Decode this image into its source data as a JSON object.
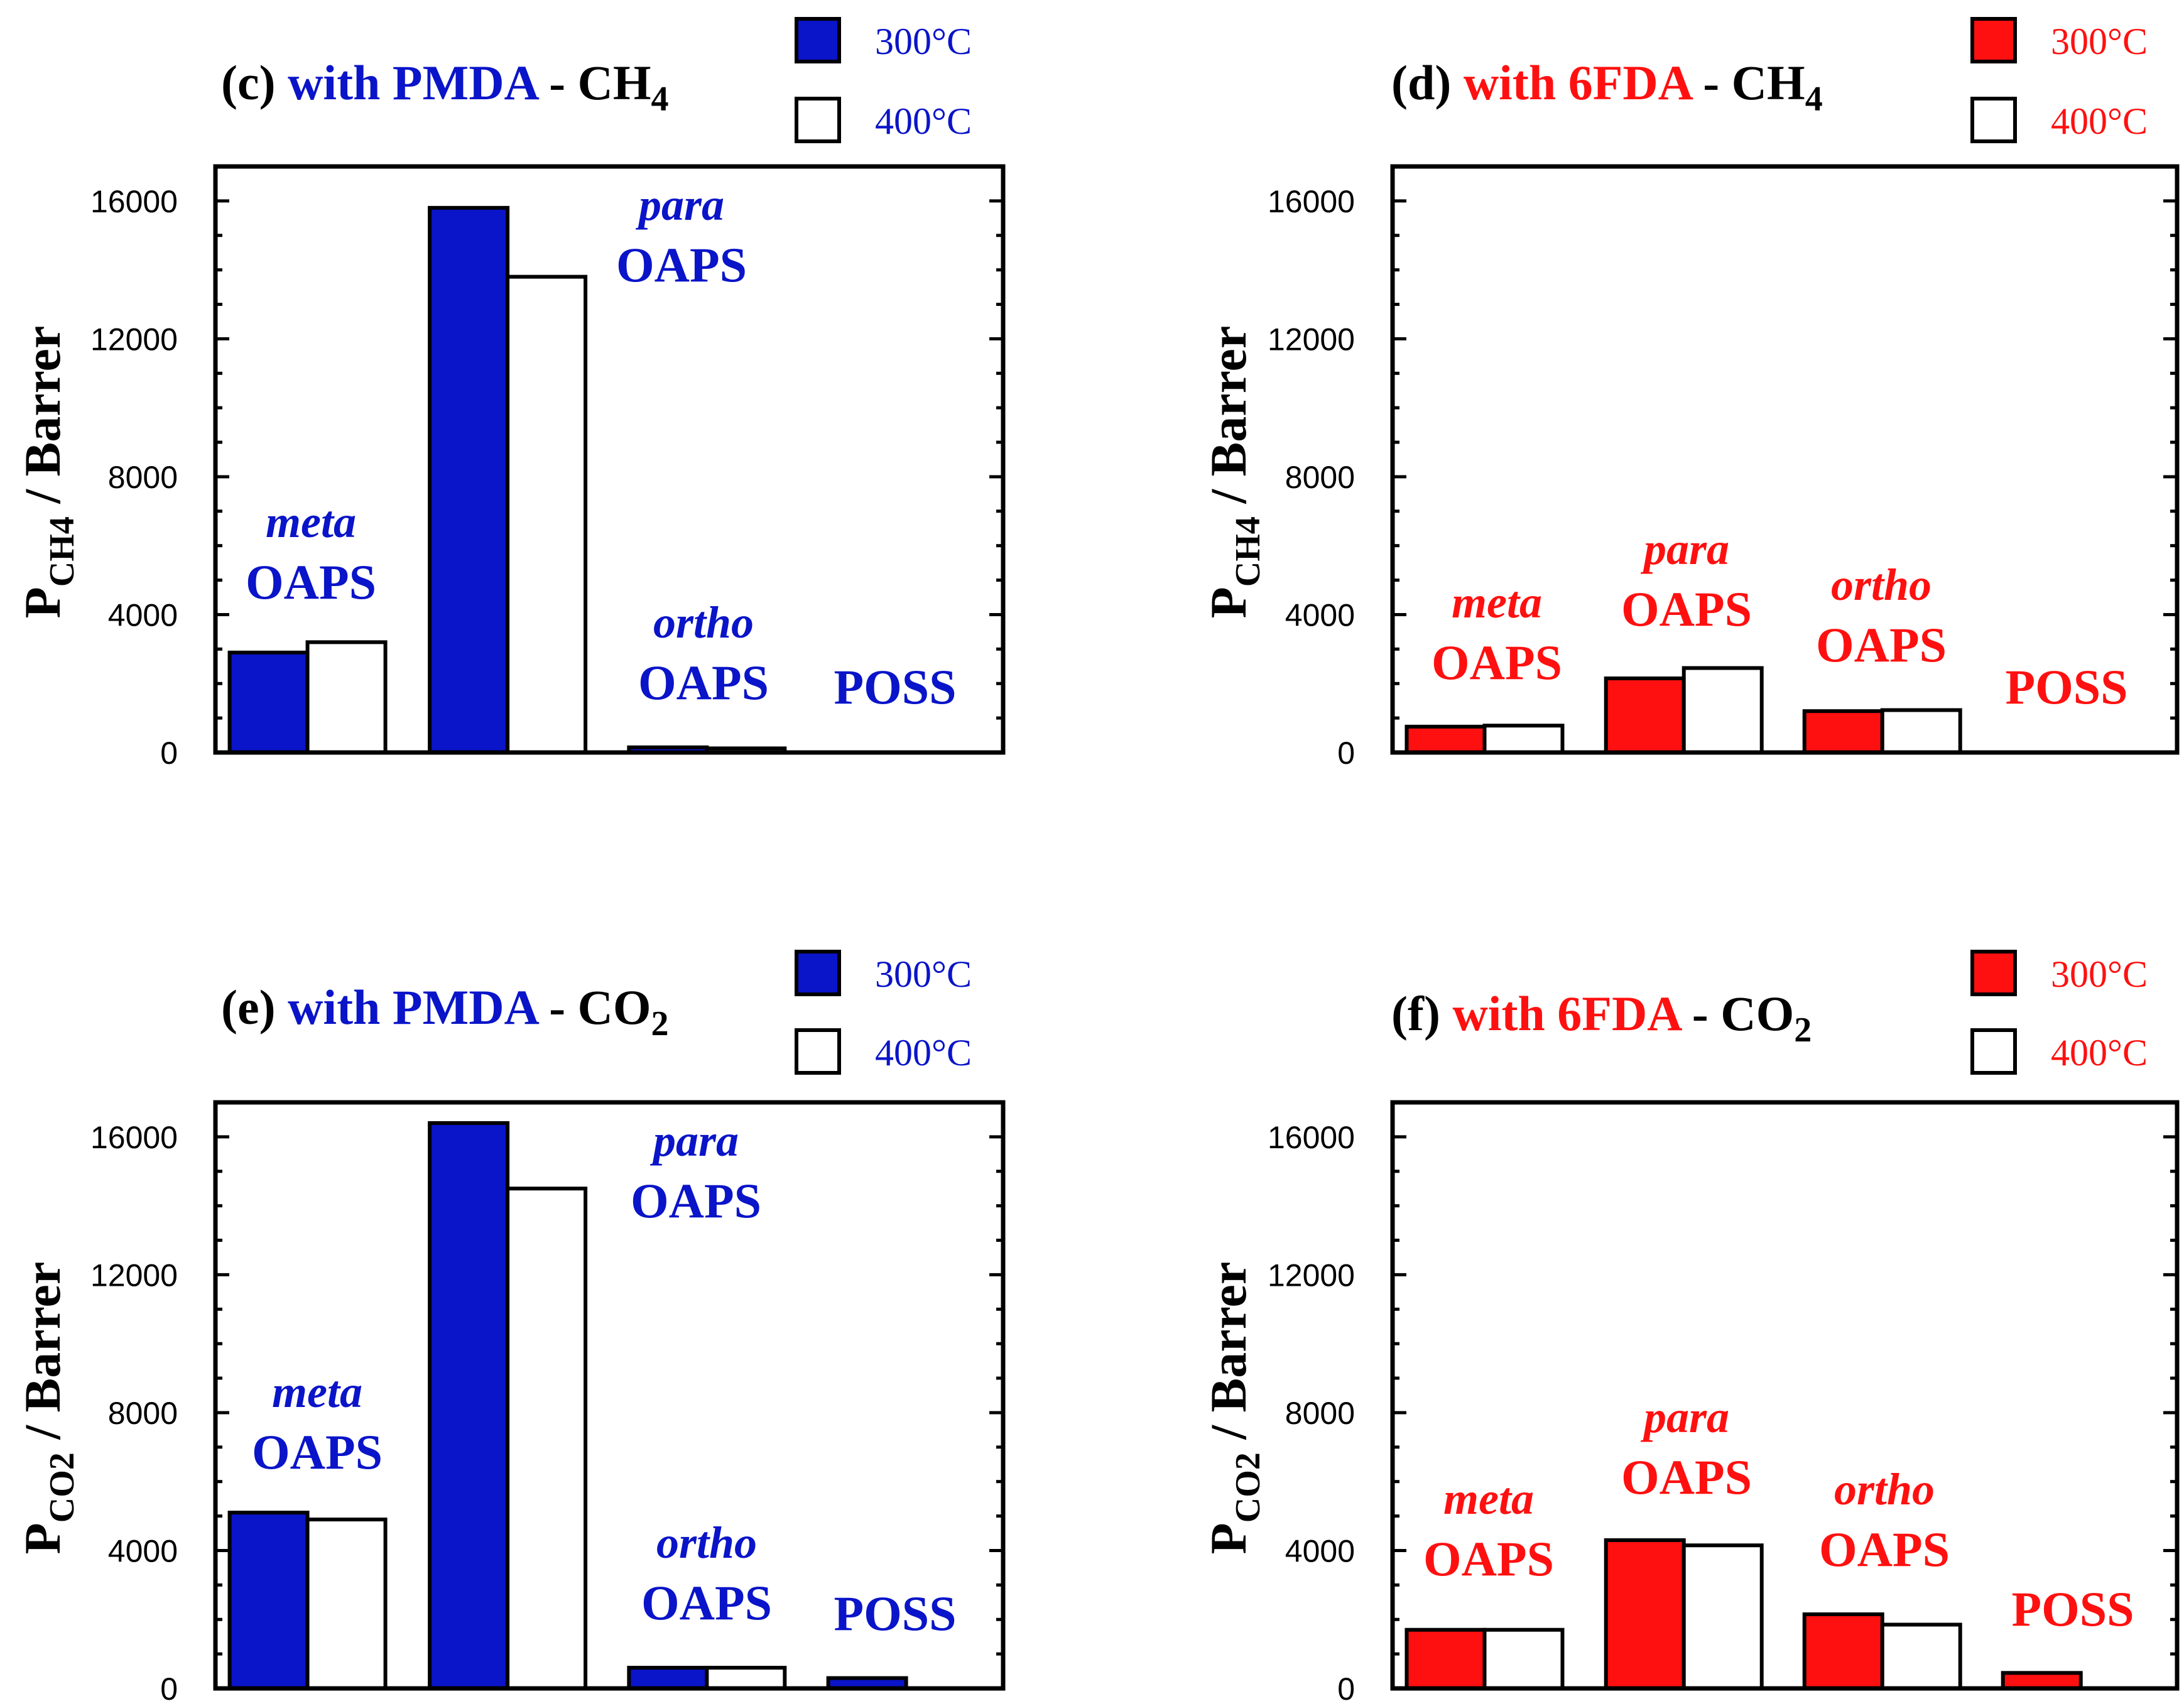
{
  "colors": {
    "pmda": "#0a14c8",
    "sixfda": "#ff1010",
    "black": "#000000",
    "white": "#ffffff"
  },
  "legend": {
    "t300": "300°C",
    "t400": "400°C"
  },
  "group_labels": [
    "meta",
    "para",
    "ortho",
    "POSS"
  ],
  "chart_data": [
    {
      "type": "bar",
      "title": {
        "letter": "(c)",
        "with": "with PMDA",
        "gas": "CH",
        "sub": "4"
      },
      "color_key": "pmda",
      "ylabel": {
        "main": "P",
        "sub": "CH4",
        "rest": " / Barrer"
      },
      "ylim": [
        0,
        17000
      ],
      "yticks": [
        "0",
        "4000",
        "8000",
        "12000",
        "16000"
      ],
      "categories": [
        "meta OAPS",
        "para OAPS",
        "ortho OAPS",
        "POSS"
      ],
      "series": [
        {
          "name": "300°C",
          "values": [
            2900,
            15800,
            150,
            0
          ]
        },
        {
          "name": "400°C",
          "values": [
            3200,
            13800,
            120,
            0
          ]
        }
      ],
      "annotations": [
        {
          "italic": "meta",
          "bold": "OAPS"
        },
        {
          "italic": "para",
          "bold": "OAPS"
        },
        {
          "italic": "ortho",
          "bold": "OAPS"
        },
        {
          "italic": "",
          "bold": "POSS"
        }
      ]
    },
    {
      "type": "bar",
      "title": {
        "letter": "(d)",
        "with": "with 6FDA",
        "gas": "CH",
        "sub": "4"
      },
      "color_key": "sixfda",
      "ylabel": {
        "main": "P",
        "sub": "CH4",
        "rest": " / Barrer"
      },
      "ylim": [
        0,
        17000
      ],
      "yticks": [
        "0",
        "4000",
        "8000",
        "12000",
        "16000"
      ],
      "categories": [
        "meta OAPS",
        "para OAPS",
        "ortho OAPS",
        "POSS"
      ],
      "series": [
        {
          "name": "300°C",
          "values": [
            750,
            2150,
            1200,
            0
          ]
        },
        {
          "name": "400°C",
          "values": [
            780,
            2450,
            1230,
            0
          ]
        }
      ],
      "annotations": [
        {
          "italic": "meta",
          "bold": "OAPS"
        },
        {
          "italic": "para",
          "bold": "OAPS"
        },
        {
          "italic": "ortho",
          "bold": "OAPS"
        },
        {
          "italic": "",
          "bold": "POSS"
        }
      ]
    },
    {
      "type": "bar",
      "title": {
        "letter": "(e)",
        "with": "with PMDA",
        "gas": "CO",
        "sub": "2"
      },
      "color_key": "pmda",
      "ylabel": {
        "main": "P",
        "sub": "CO2",
        "rest": " / Barrer"
      },
      "ylim": [
        0,
        17000
      ],
      "yticks": [
        "0",
        "4000",
        "8000",
        "12000",
        "16000"
      ],
      "categories": [
        "meta OAPS",
        "para OAPS",
        "ortho OAPS",
        "POSS"
      ],
      "series": [
        {
          "name": "300°C",
          "values": [
            5100,
            16400,
            600,
            300
          ]
        },
        {
          "name": "400°C",
          "values": [
            4900,
            14500,
            600,
            0
          ]
        }
      ],
      "annotations": [
        {
          "italic": "meta",
          "bold": "OAPS"
        },
        {
          "italic": "para",
          "bold": "OAPS"
        },
        {
          "italic": "ortho",
          "bold": "OAPS"
        },
        {
          "italic": "",
          "bold": "POSS"
        }
      ]
    },
    {
      "type": "bar",
      "title": {
        "letter": "(f)",
        "with": "with 6FDA",
        "gas": "CO",
        "sub": "2"
      },
      "color_key": "sixfda",
      "ylabel": {
        "main": "P",
        "sub": "CO2",
        "rest": " / Barrer"
      },
      "ylim": [
        0,
        17000
      ],
      "yticks": [
        "0",
        "4000",
        "8000",
        "12000",
        "16000"
      ],
      "categories": [
        "meta OAPS",
        "para OAPS",
        "ortho OAPS",
        "POSS"
      ],
      "series": [
        {
          "name": "300°C",
          "values": [
            1700,
            4300,
            2150,
            450
          ]
        },
        {
          "name": "400°C",
          "values": [
            1700,
            4150,
            1850,
            0
          ]
        }
      ],
      "annotations": [
        {
          "italic": "meta",
          "bold": "OAPS"
        },
        {
          "italic": "para",
          "bold": "OAPS"
        },
        {
          "italic": "ortho",
          "bold": "OAPS"
        },
        {
          "italic": "",
          "bold": "POSS"
        }
      ]
    }
  ]
}
